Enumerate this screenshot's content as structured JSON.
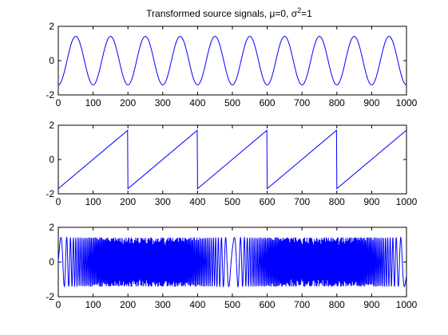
{
  "chart_data": [
    {
      "type": "line",
      "title_prefix": "Transformed source signals, μ=0, σ",
      "title_sup": "2",
      "title_suffix": "=1",
      "series": [
        {
          "name": "sine",
          "color": "#0000ff",
          "kind": "sine",
          "period": 100,
          "amplitude": 1.414,
          "phase_deg": 270
        }
      ],
      "xlim": [
        0,
        1000
      ],
      "ylim": [
        -2,
        2
      ],
      "xticks": [
        0,
        100,
        200,
        300,
        400,
        500,
        600,
        700,
        800,
        900,
        1000
      ],
      "yticks": [
        -2,
        0,
        2
      ],
      "xlabel": "",
      "ylabel": ""
    },
    {
      "type": "line",
      "series": [
        {
          "name": "sawtooth",
          "color": "#0000ff",
          "kind": "sawtooth",
          "period": 200,
          "min": -1.7,
          "max": 1.7
        }
      ],
      "xlim": [
        0,
        1000
      ],
      "ylim": [
        -2,
        2
      ],
      "xticks": [
        0,
        100,
        200,
        300,
        400,
        500,
        600,
        700,
        800,
        900,
        1000
      ],
      "yticks": [
        -2,
        0,
        2
      ],
      "xlabel": "",
      "ylabel": ""
    },
    {
      "type": "line",
      "series": [
        {
          "name": "chirp",
          "color": "#0000ff",
          "kind": "chirp",
          "amplitude": 1.414
        }
      ],
      "xlim": [
        0,
        1000
      ],
      "ylim": [
        -2,
        2
      ],
      "xticks": [
        0,
        100,
        200,
        300,
        400,
        500,
        600,
        700,
        800,
        900,
        1000
      ],
      "yticks": [
        -2,
        0,
        2
      ],
      "xlabel": "",
      "ylabel": ""
    }
  ]
}
